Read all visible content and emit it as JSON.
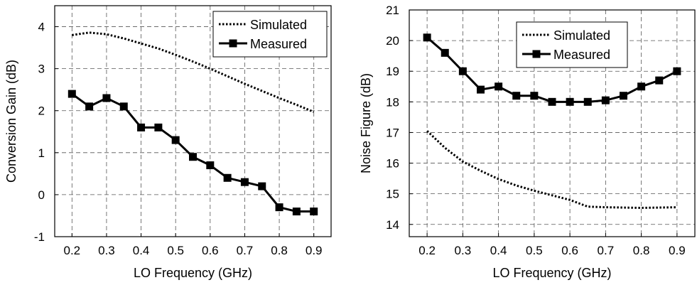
{
  "chart_data": [
    {
      "type": "line",
      "xlabel": "LO Frequency (GHz)",
      "ylabel": "Conversion Gain (dB)",
      "xlim": [
        0.15,
        0.95
      ],
      "ylim": [
        -1,
        4.5
      ],
      "x_ticks": [
        "0.2",
        "0.3",
        "0.4",
        "0.5",
        "0.6",
        "0.7",
        "0.8",
        "0.9"
      ],
      "y_ticks": [
        "-1",
        "0",
        "1",
        "2",
        "3",
        "4"
      ],
      "grid": true,
      "legend_position": "top-right",
      "series": [
        {
          "name": "Simulated",
          "style": "dotted",
          "x": [
            0.2,
            0.25,
            0.3,
            0.35,
            0.4,
            0.45,
            0.5,
            0.55,
            0.6,
            0.65,
            0.7,
            0.75,
            0.8,
            0.85,
            0.9
          ],
          "values": [
            3.8,
            3.86,
            3.82,
            3.72,
            3.6,
            3.48,
            3.33,
            3.17,
            3.0,
            2.82,
            2.64,
            2.47,
            2.3,
            2.14,
            1.97
          ]
        },
        {
          "name": "Measured",
          "style": "solid-square-markers",
          "x": [
            0.2,
            0.25,
            0.3,
            0.35,
            0.4,
            0.45,
            0.5,
            0.55,
            0.6,
            0.65,
            0.7,
            0.75,
            0.8,
            0.85,
            0.9
          ],
          "values": [
            2.4,
            2.1,
            2.3,
            2.1,
            1.6,
            1.6,
            1.3,
            0.9,
            0.7,
            0.4,
            0.3,
            0.2,
            -0.3,
            -0.4,
            -0.4
          ]
        }
      ]
    },
    {
      "type": "line",
      "xlabel": "LO Frequency (GHz)",
      "ylabel": "Noise Figure (dB)",
      "xlim": [
        0.15,
        0.95
      ],
      "ylim": [
        13.6,
        21
      ],
      "x_ticks": [
        "0.2",
        "0.3",
        "0.4",
        "0.5",
        "0.6",
        "0.7",
        "0.8",
        "0.9"
      ],
      "y_ticks": [
        "14",
        "15",
        "16",
        "17",
        "18",
        "19",
        "20",
        "21"
      ],
      "grid": true,
      "legend_position": "top-left",
      "series": [
        {
          "name": "Simulated",
          "style": "dotted",
          "x": [
            0.2,
            0.25,
            0.3,
            0.35,
            0.4,
            0.45,
            0.5,
            0.55,
            0.6,
            0.65,
            0.7,
            0.75,
            0.8,
            0.85,
            0.9
          ],
          "values": [
            17.05,
            16.5,
            16.05,
            15.75,
            15.48,
            15.27,
            15.1,
            14.95,
            14.8,
            14.58,
            14.56,
            14.55,
            14.54,
            14.55,
            14.56
          ]
        },
        {
          "name": "Measured",
          "style": "solid-square-markers",
          "x": [
            0.2,
            0.25,
            0.3,
            0.35,
            0.4,
            0.45,
            0.5,
            0.55,
            0.6,
            0.65,
            0.7,
            0.75,
            0.8,
            0.85,
            0.9
          ],
          "values": [
            20.1,
            19.6,
            19.0,
            18.4,
            18.5,
            18.2,
            18.2,
            18.0,
            18.0,
            18.0,
            18.05,
            18.2,
            18.5,
            18.7,
            19.0
          ]
        }
      ]
    }
  ]
}
